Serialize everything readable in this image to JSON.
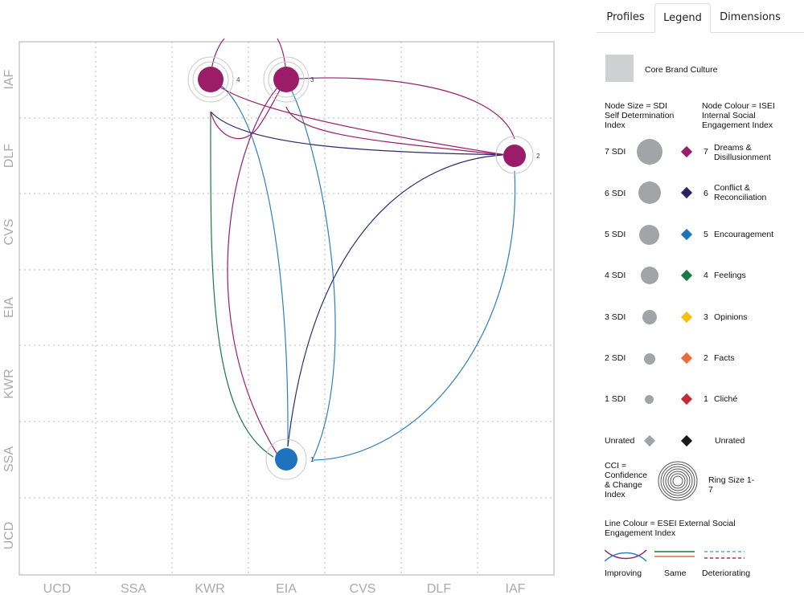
{
  "tabs": [
    {
      "label": "Profiles",
      "active": false
    },
    {
      "label": "Legend",
      "active": true
    },
    {
      "label": "Dimensions",
      "active": false
    }
  ],
  "chart": {
    "x_axis": [
      "UCD",
      "SSA",
      "KWR",
      "EIA",
      "CVS",
      "DLF",
      "IAF"
    ],
    "y_axis": [
      "IAF",
      "DLF",
      "CVS",
      "EIA",
      "KWR",
      "SSA",
      "UCD"
    ]
  },
  "chart_data": {
    "type": "scatter",
    "title": "",
    "x_categories": [
      "UCD",
      "SSA",
      "KWR",
      "EIA",
      "CVS",
      "DLF",
      "IAF"
    ],
    "y_categories": [
      "UCD",
      "SSA",
      "KWR",
      "EIA",
      "CVS",
      "DLF",
      "IAF"
    ],
    "nodes": [
      {
        "id": "1",
        "label": "1",
        "x": "EIA",
        "y": "SSA",
        "color": "#1e73be"
      },
      {
        "id": "2",
        "label": "2",
        "x": "IAF",
        "y": "DLF",
        "color": "#9b1d6a"
      },
      {
        "id": "3",
        "label": "3",
        "x": "EIA",
        "y": "IAF",
        "color": "#9b1d6a"
      },
      {
        "id": "4",
        "label": "4",
        "x": "KWR",
        "y": "IAF",
        "color": "#9b1d6a"
      }
    ],
    "links": [
      {
        "from": "4",
        "to": "1",
        "color": "#1a7a45"
      },
      {
        "from": "4",
        "to": "1",
        "color": "#2f7fc1"
      },
      {
        "from": "4",
        "to": "2",
        "color": "#2a2a6e"
      },
      {
        "from": "3",
        "to": "1",
        "color": "#9b1d6a"
      },
      {
        "from": "3",
        "to": "1",
        "color": "#2f7fc1"
      },
      {
        "from": "3",
        "to": "2",
        "color": "#9b1d6a"
      },
      {
        "from": "3",
        "to": "2",
        "color": "#9b1d6a"
      },
      {
        "from": "2",
        "to": "1",
        "color": "#2a2a6e"
      },
      {
        "from": "2",
        "to": "1",
        "color": "#2f7fc1"
      },
      {
        "from": "4",
        "to": "3",
        "color": "#9b1d6a"
      }
    ]
  },
  "legend": {
    "core_brand_culture": "Core Brand Culture",
    "node_size_title": "Node Size = SDI Self Determination Index",
    "node_colour_title": "Node Colour = ISEI Internal Social Engagement Index",
    "sdi_rows": [
      {
        "label": "7 SDI",
        "num": "7",
        "name": "Dreams & Disillusionment",
        "color": "#9b1d6a"
      },
      {
        "label": "6 SDI",
        "num": "6",
        "name": "Conflict & Reconciliation",
        "color": "#25245f"
      },
      {
        "label": "5 SDI",
        "num": "5",
        "name": "Encouragement",
        "color": "#1e73be"
      },
      {
        "label": "4 SDI",
        "num": "4",
        "name": "Feelings",
        "color": "#1a7a45"
      },
      {
        "label": "3 SDI",
        "num": "3",
        "name": "Opinions",
        "color": "#f6c10e"
      },
      {
        "label": "2 SDI",
        "num": "2",
        "name": "Facts",
        "color": "#ec6b3a"
      },
      {
        "label": "1 SDI",
        "num": "1",
        "name": "Cliché",
        "color": "#c62a32"
      }
    ],
    "unrated_left": "Unrated",
    "unrated_right": "Unrated",
    "unrated_left_color": "#a2a4a7",
    "unrated_right_color": "#1a1a1a",
    "cci": "CCI = Confidence & Change Index",
    "ring_size": "Ring Size 1-7",
    "line_colour_title": "Line Colour = ESEI External Social Engagement Index",
    "improving": "Improving",
    "same": "Same",
    "deteriorating": "Deteriorating"
  }
}
